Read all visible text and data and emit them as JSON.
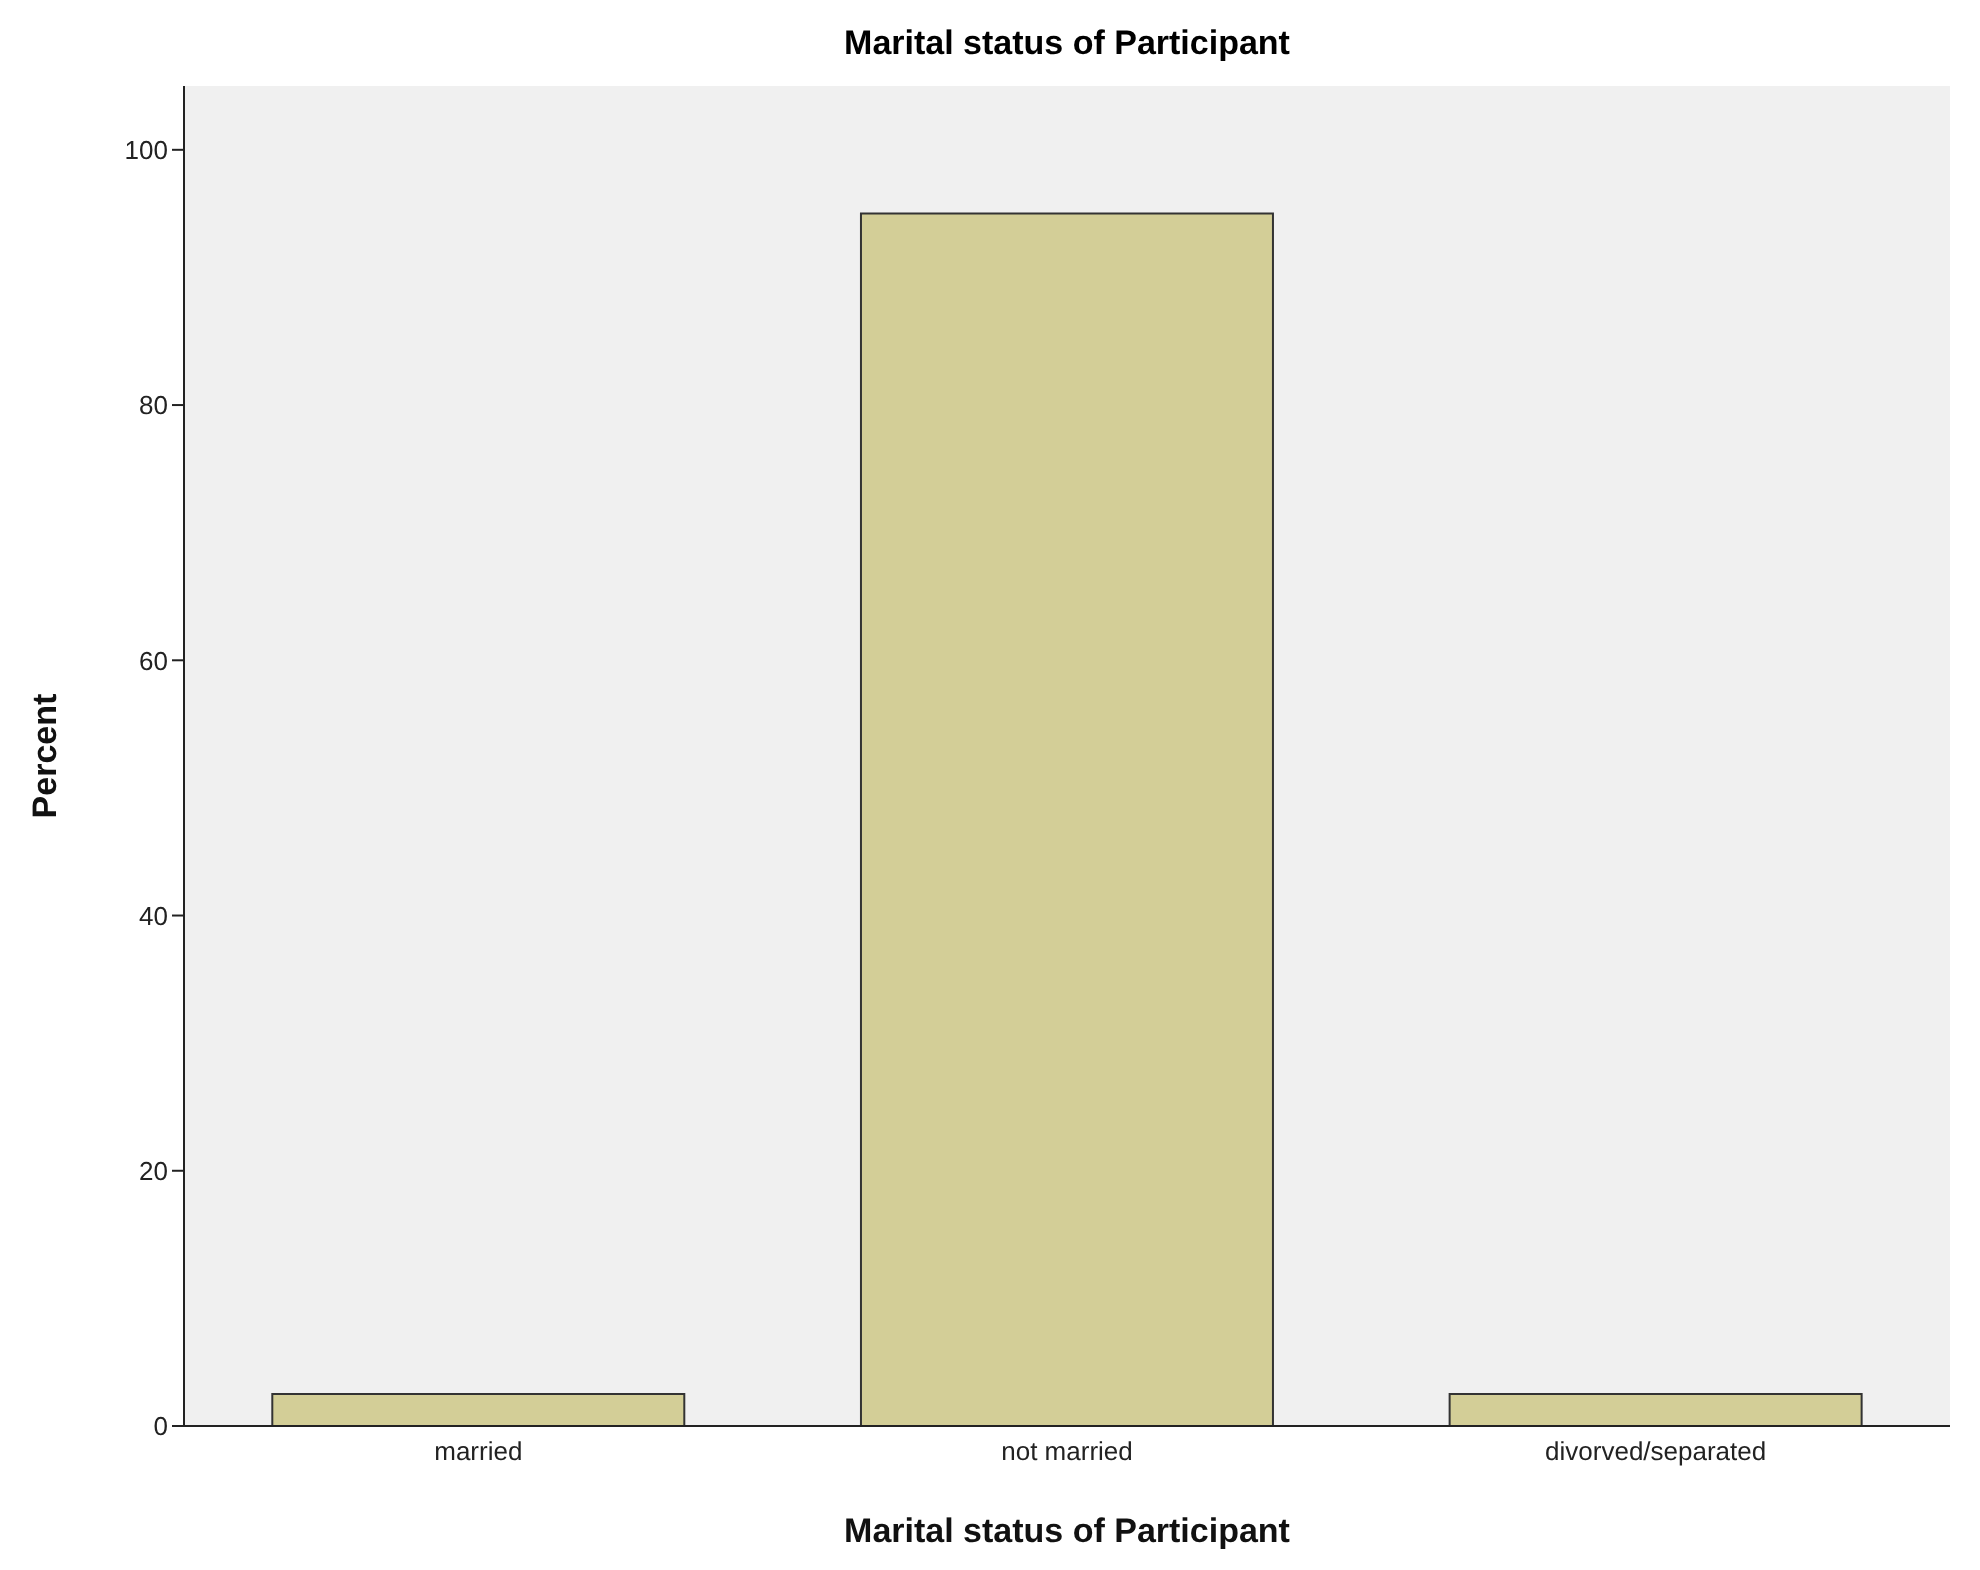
{
  "chart_data": {
    "type": "bar",
    "title": "Marital status of Participant",
    "xlabel": "Marital status of Participant",
    "ylabel": "Percent",
    "categories": [
      "married",
      "not married",
      "divorved/separated"
    ],
    "values": [
      2.5,
      95,
      2.5
    ],
    "color": "#d3ce97",
    "ylim": [
      0,
      105
    ],
    "yticks": [
      0,
      20,
      40,
      60,
      80,
      100
    ],
    "grid": false
  }
}
